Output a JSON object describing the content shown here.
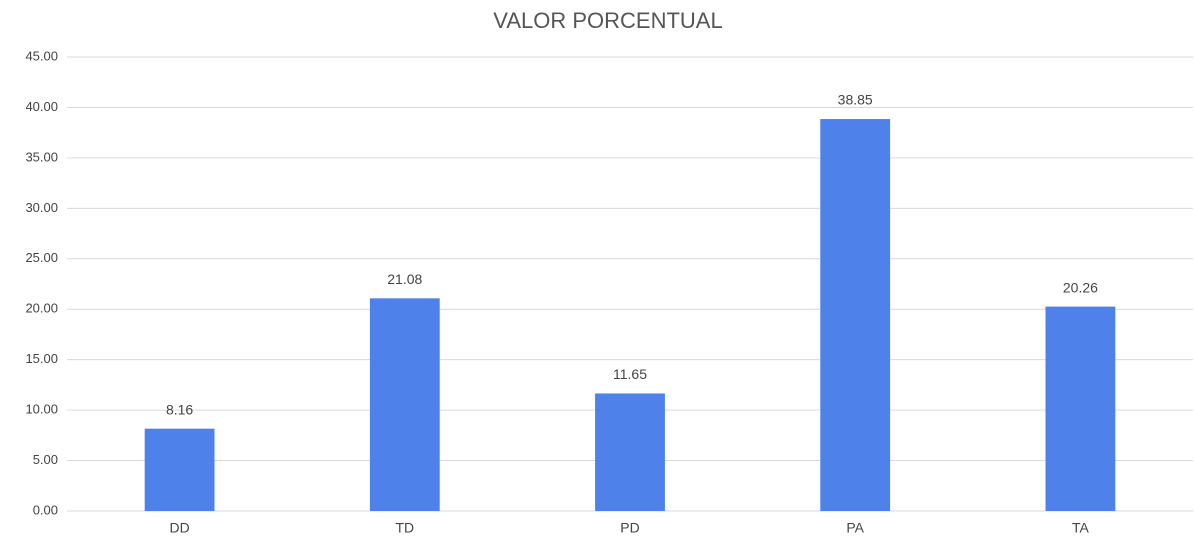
{
  "chart_data": {
    "type": "bar",
    "title": "VALOR PORCENTUAL",
    "categories": [
      "DD",
      "TD",
      "PD",
      "PA",
      "TA"
    ],
    "values": [
      8.16,
      21.08,
      11.65,
      38.85,
      20.26
    ],
    "color": "#4e81ea",
    "ylim": [
      0,
      45
    ],
    "yticks": [
      {
        "value": 0,
        "label": "0.00"
      },
      {
        "value": 5,
        "label": "5.00"
      },
      {
        "value": 10,
        "label": "10.00"
      },
      {
        "value": 15,
        "label": "15.00"
      },
      {
        "value": 20,
        "label": "20.00"
      },
      {
        "value": 25,
        "label": "25.00"
      },
      {
        "value": 30,
        "label": "30.00"
      },
      {
        "value": 35,
        "label": "35.00"
      },
      {
        "value": 40,
        "label": "40.00"
      },
      {
        "value": 45,
        "label": "45.00"
      }
    ],
    "grid": true
  }
}
